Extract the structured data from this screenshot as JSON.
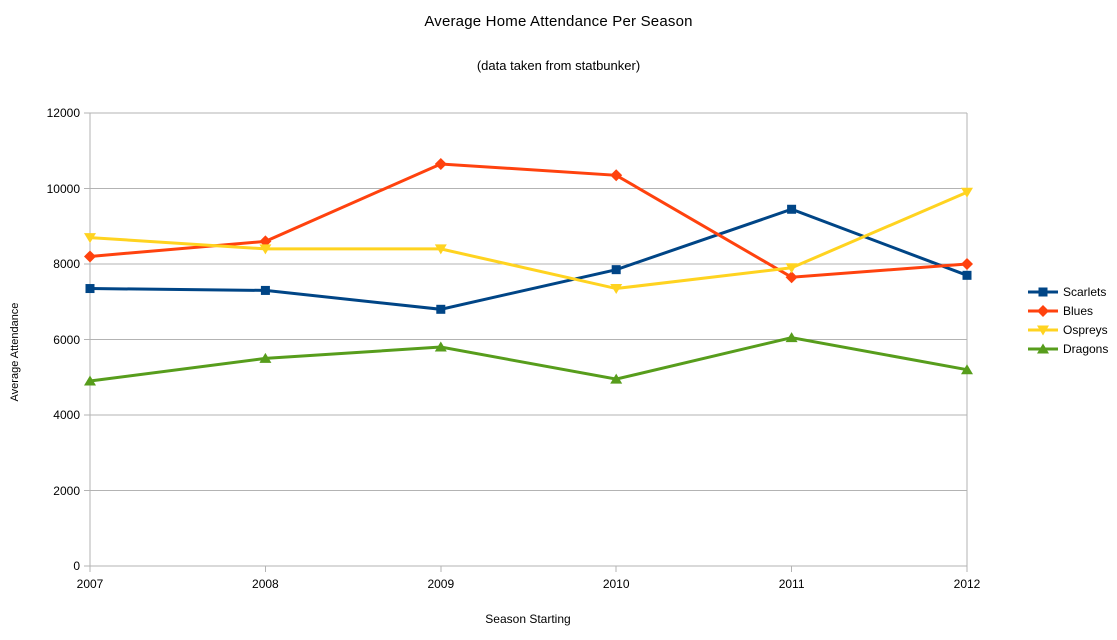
{
  "title": "Average Home Attendance Per Season",
  "subtitle": "(data taken from statbunker)",
  "colors": {
    "background": "#ffffff",
    "gridline": "#b3b3b3",
    "axis": "#b3b3b3",
    "text": "#000000"
  },
  "chart_data": {
    "type": "line",
    "title": "Average Home Attendance Per Season",
    "subtitle": "(data taken from statbunker)",
    "xlabel": "Season Starting",
    "ylabel": "Average Attendance",
    "x": [
      2007,
      2008,
      2009,
      2010,
      2011,
      2012
    ],
    "ylim": [
      0,
      12000
    ],
    "yticks": [
      0,
      2000,
      4000,
      6000,
      8000,
      10000,
      12000
    ],
    "grid": true,
    "legend_position": "right",
    "series": [
      {
        "name": "Scarlets",
        "color": "#004586",
        "marker": "square",
        "values": [
          7350,
          7300,
          6800,
          7850,
          9450,
          7700
        ]
      },
      {
        "name": "Blues",
        "color": "#FF420E",
        "marker": "diamond",
        "values": [
          8200,
          8600,
          10650,
          10350,
          7650,
          8000
        ]
      },
      {
        "name": "Ospreys",
        "color": "#FFD320",
        "marker": "triangle-down",
        "values": [
          8700,
          8400,
          8400,
          7350,
          7900,
          9900
        ]
      },
      {
        "name": "Dragons",
        "color": "#579D1C",
        "marker": "triangle-up",
        "values": [
          4900,
          5500,
          5800,
          4950,
          6050,
          5200
        ]
      }
    ]
  }
}
